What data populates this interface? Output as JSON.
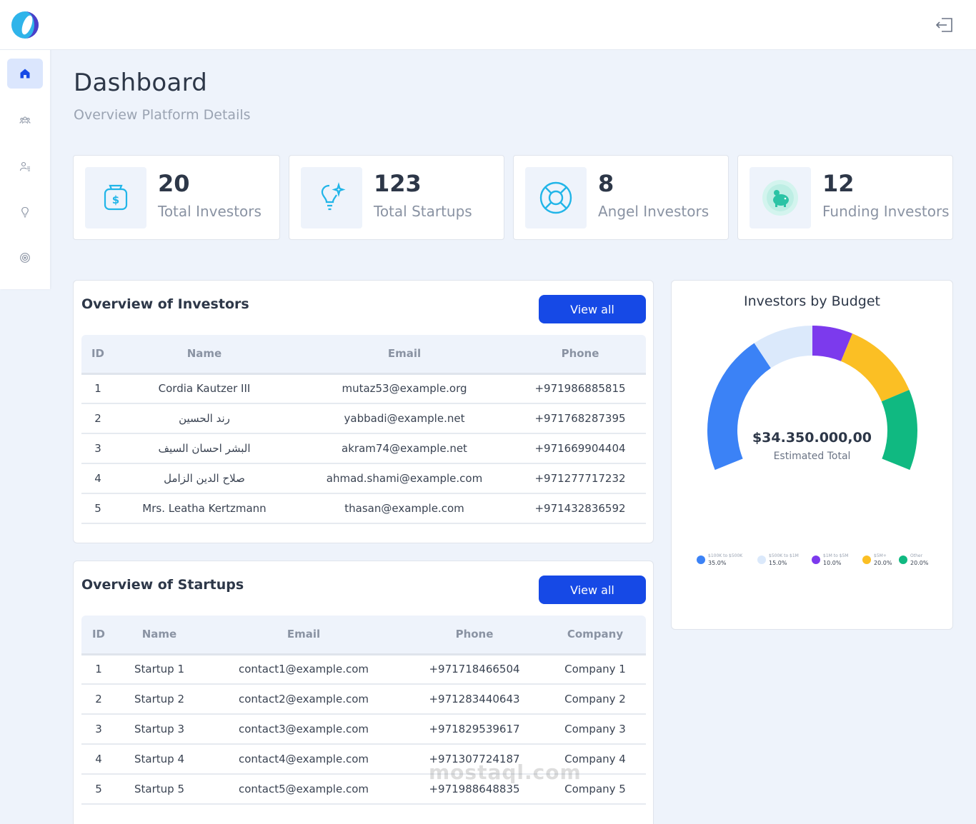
{
  "page": {
    "title": "Dashboard",
    "subtitle": "Overview Platform Details"
  },
  "sidebar": {
    "items": [
      {
        "name": "home",
        "icon": "home-icon",
        "active": true
      },
      {
        "name": "investors",
        "icon": "users-icon",
        "active": false
      },
      {
        "name": "profile",
        "icon": "user-list-icon",
        "active": false
      },
      {
        "name": "startups",
        "icon": "lightbulb-icon",
        "active": false
      },
      {
        "name": "reports",
        "icon": "target-icon",
        "active": false
      }
    ]
  },
  "topbar": {
    "logout_icon": "logout-icon"
  },
  "stats": [
    {
      "value": "20",
      "label": "Total Investors",
      "icon": "money-bag-icon"
    },
    {
      "value": "123",
      "label": "Total Startups",
      "icon": "lightbulb-sparkle-icon"
    },
    {
      "value": "8",
      "label": "Angel Investors",
      "icon": "lifebuoy-icon"
    },
    {
      "value": "12",
      "label": "Funding Investors",
      "icon": "piggy-bank-icon"
    }
  ],
  "investors": {
    "title": "Overview of Investors",
    "view_all": "View all",
    "columns": [
      "ID",
      "Name",
      "Email",
      "Phone"
    ],
    "rows": [
      [
        "1",
        "Cordia Kautzer III",
        "mutaz53@example.org",
        "+971986885815"
      ],
      [
        "2",
        "رند الحسين",
        "yabbadi@example.net",
        "+971768287395"
      ],
      [
        "3",
        "البشر احسان السيف",
        "akram74@example.net",
        "+971669904404"
      ],
      [
        "4",
        "صلاح الدين الزامل",
        "ahmad.shami@example.com",
        "+971277717232"
      ],
      [
        "5",
        "Mrs. Leatha Kertzmann",
        "thasan@example.com",
        "+971432836592"
      ]
    ]
  },
  "startups": {
    "title": "Overview of Startups",
    "view_all": "View all",
    "columns": [
      "ID",
      "Name",
      "Email",
      "Phone",
      "Company"
    ],
    "rows": [
      [
        "1",
        "Startup 1",
        "contact1@example.com",
        "+971718466504",
        "Company 1"
      ],
      [
        "2",
        "Startup 2",
        "contact2@example.com",
        "+971283440643",
        "Company 2"
      ],
      [
        "3",
        "Startup 3",
        "contact3@example.com",
        "+971829539617",
        "Company 3"
      ],
      [
        "4",
        "Startup 4",
        "contact4@example.com",
        "+971307724187",
        "Company 4"
      ],
      [
        "5",
        "Startup 5",
        "contact5@example.com",
        "+971988648835",
        "Company 5"
      ]
    ]
  },
  "budget": {
    "title": "Investors by Budget",
    "total": "$34.350.000,00",
    "total_label": "Estimated Total"
  },
  "chart_data": {
    "type": "pie",
    "variant": "half-donut gauge",
    "title": "Investors by Budget",
    "categories": [
      "$100K to $500K",
      "$500K to $1M",
      "$1M to $5M",
      "$5M+",
      "Other"
    ],
    "values": [
      35.0,
      15.0,
      10.0,
      20.0,
      20.0
    ],
    "labels": [
      "35.0%",
      "15.0%",
      "10.0%",
      "20.0%",
      "20.0%"
    ],
    "colors": [
      "#3b82f6",
      "#dbe9fb",
      "#7c3aed",
      "#fbbf24",
      "#10b981"
    ],
    "legend": "bottom"
  },
  "watermark": "mostaql.com"
}
